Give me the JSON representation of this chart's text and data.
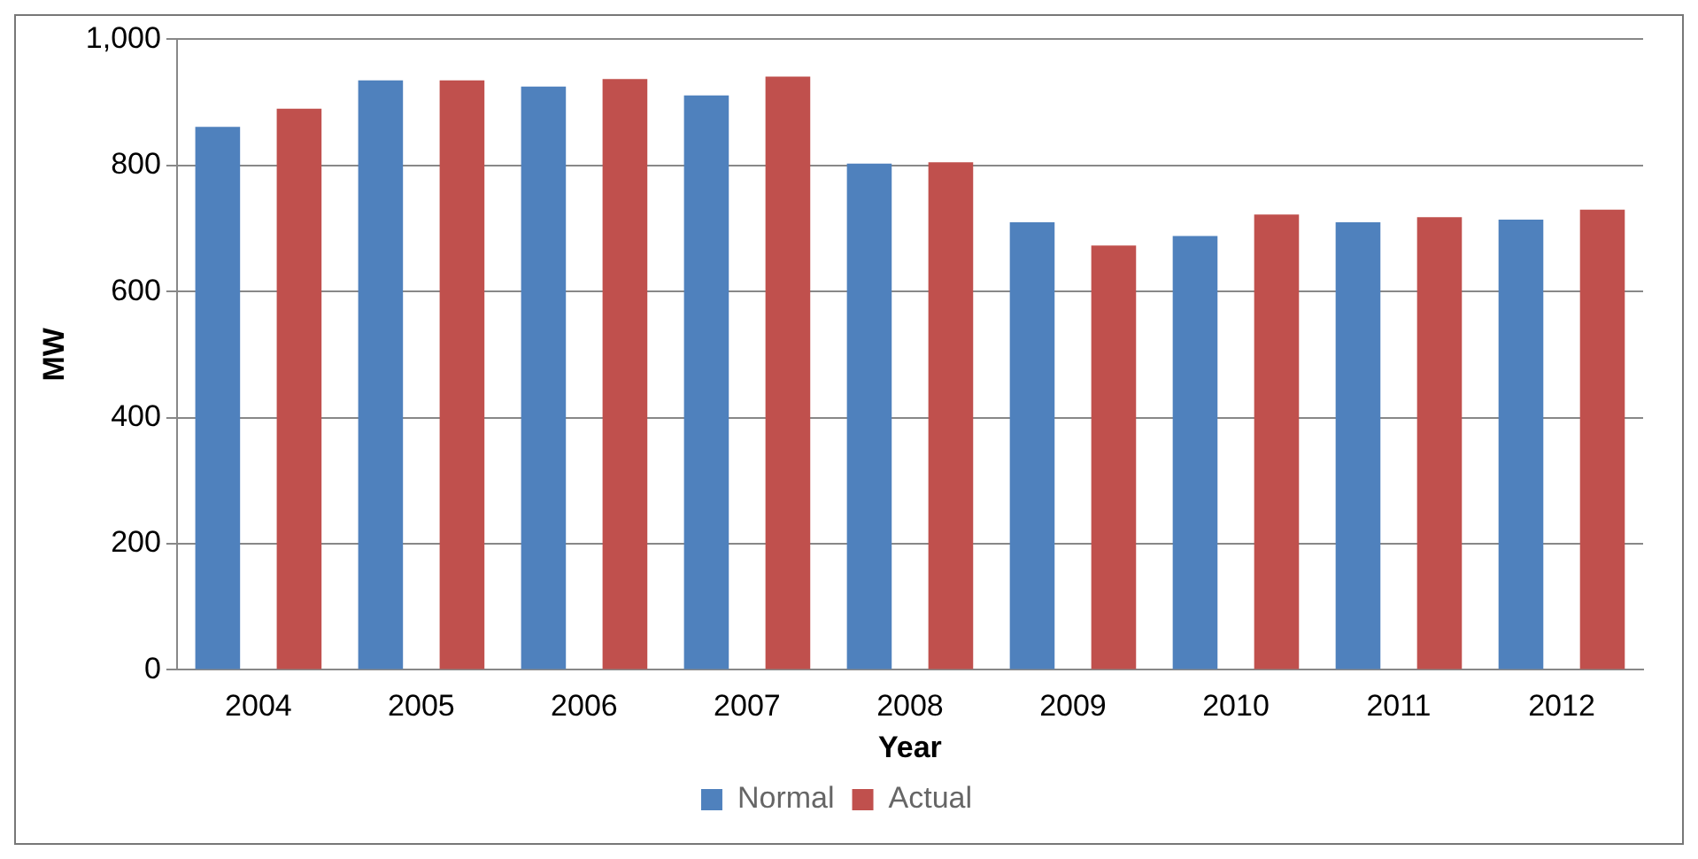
{
  "chart_data": {
    "type": "bar",
    "xlabel": "Year",
    "ylabel": "MW",
    "categories": [
      "2004",
      "2005",
      "2006",
      "2007",
      "2008",
      "2009",
      "2010",
      "2011",
      "2012"
    ],
    "series": [
      {
        "name": "Normal",
        "color": "#4f81bd",
        "values": [
          861,
          935,
          925,
          911,
          803,
          710,
          688,
          710,
          714
        ]
      },
      {
        "name": "Actual",
        "color": "#c0504d",
        "values": [
          890,
          935,
          937,
          941,
          805,
          673,
          722,
          718,
          730
        ]
      }
    ],
    "ylim": [
      0,
      1000
    ],
    "yticks": [
      0,
      200,
      400,
      600,
      800,
      {
        "value": 1000,
        "label": "1,000"
      }
    ],
    "grid": "y",
    "legend": "bottom"
  }
}
